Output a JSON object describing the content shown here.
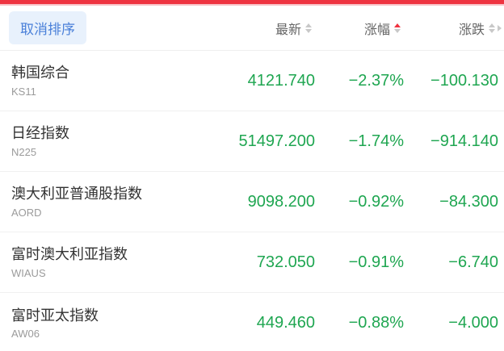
{
  "colors": {
    "top_bar_red": "#ee3340",
    "button_blue": "#4a80d9",
    "button_bg": "#e8f1fc",
    "value_green": "#1fa651",
    "sort_active_red": "#f0323f",
    "header_gray": "#666666",
    "name_dark": "#333333",
    "code_gray": "#9b9b9b"
  },
  "toolbar": {
    "cancel_sort_label": "取消排序"
  },
  "header": {
    "columns": [
      {
        "label": "最新",
        "sort": "none"
      },
      {
        "label": "涨幅",
        "sort": "asc"
      },
      {
        "label": "涨跌",
        "sort": "none",
        "chevron": true
      }
    ]
  },
  "rows": [
    {
      "name": "韩国综合",
      "code": "KS11",
      "last": "4121.740",
      "change_pct": "−2.37%",
      "change": "−100.130"
    },
    {
      "name": "日经指数",
      "code": "N225",
      "last": "51497.200",
      "change_pct": "−1.74%",
      "change": "−914.140"
    },
    {
      "name": "澳大利亚普通股指数",
      "code": "AORD",
      "last": "9098.200",
      "change_pct": "−0.92%",
      "change": "−84.300"
    },
    {
      "name": "富时澳大利亚指数",
      "code": "WIAUS",
      "last": "732.050",
      "change_pct": "−0.91%",
      "change": "−6.740"
    },
    {
      "name": "富时亚太指数",
      "code": "AW06",
      "last": "449.460",
      "change_pct": "−0.88%",
      "change": "−4.000"
    }
  ]
}
